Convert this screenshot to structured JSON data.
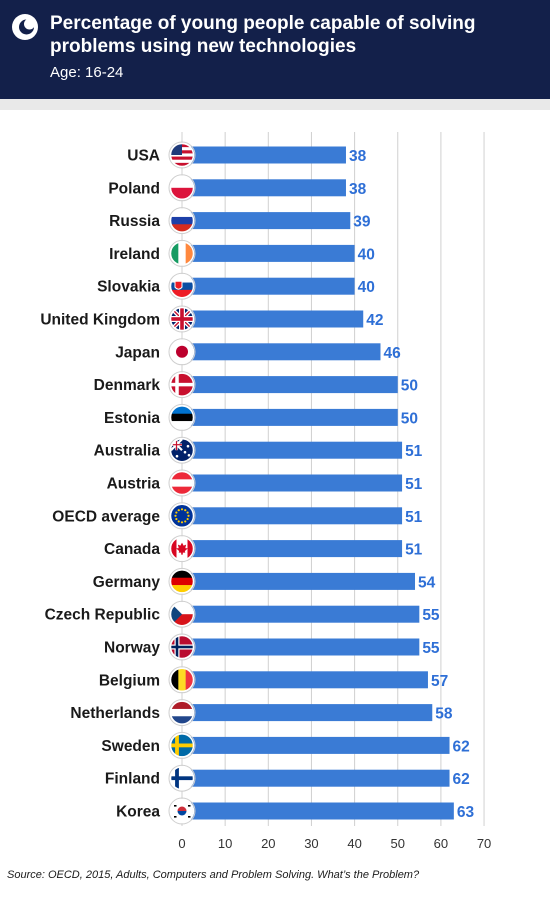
{
  "header": {
    "title": "Percentage of young people capable of solving problems using new technologies",
    "subtitle": "Age: 16-24",
    "background": "#13204a"
  },
  "chart_data": {
    "type": "bar",
    "orientation": "horizontal",
    "categories": [
      "USA",
      "Poland",
      "Russia",
      "Ireland",
      "Slovakia",
      "United Kingdom",
      "Japan",
      "Denmark",
      "Estonia",
      "Australia",
      "Austria",
      "OECD average",
      "Canada",
      "Germany",
      "Czech Republic",
      "Norway",
      "Belgium",
      "Netherlands",
      "Sweden",
      "Finland",
      "Korea"
    ],
    "values": [
      38,
      38,
      39,
      40,
      40,
      42,
      46,
      50,
      50,
      51,
      51,
      51,
      51,
      54,
      55,
      55,
      57,
      58,
      62,
      62,
      63
    ],
    "flags": [
      "usa-flag-icon",
      "poland-flag-icon",
      "russia-flag-icon",
      "ireland-flag-icon",
      "slovakia-flag-icon",
      "uk-flag-icon",
      "japan-flag-icon",
      "denmark-flag-icon",
      "estonia-flag-icon",
      "australia-flag-icon",
      "austria-flag-icon",
      "eu-flag-icon",
      "canada-flag-icon",
      "germany-flag-icon",
      "czech-flag-icon",
      "norway-flag-icon",
      "belgium-flag-icon",
      "netherlands-flag-icon",
      "sweden-flag-icon",
      "finland-flag-icon",
      "korea-flag-icon"
    ],
    "xlim": [
      0,
      70
    ],
    "xticks": [
      0,
      10,
      20,
      30,
      40,
      50,
      60,
      70
    ],
    "grid": true,
    "bar_color": "#3a7bd5",
    "label_color": "#2e6fd6"
  },
  "source": "Source: OECD, 2015, Adults, Computers and Problem Solving. What’s the Problem?"
}
